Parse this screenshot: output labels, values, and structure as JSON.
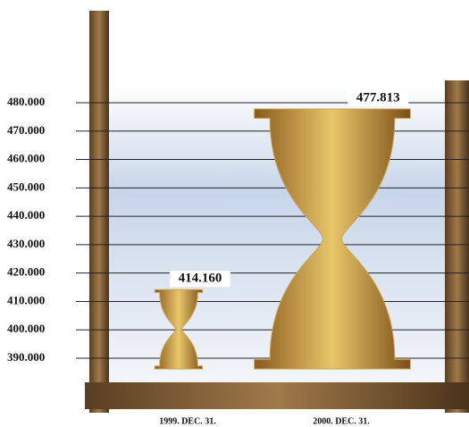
{
  "chart_data": {
    "type": "hourglass",
    "categories": [
      "1999. DEC. 31.",
      "2000. DEC. 31."
    ],
    "values": [
      414160,
      477813
    ],
    "value_labels": [
      "414.160",
      "477.813"
    ],
    "ylim": [
      390000,
      480000
    ],
    "yticks": [
      {
        "value": 390000,
        "label": "390.000"
      },
      {
        "value": 400000,
        "label": "400.000"
      },
      {
        "value": 410000,
        "label": "410.000"
      },
      {
        "value": 420000,
        "label": "420.000"
      },
      {
        "value": 430000,
        "label": "430.000"
      },
      {
        "value": 440000,
        "label": "440.000"
      },
      {
        "value": 450000,
        "label": "450.000"
      },
      {
        "value": 460000,
        "label": "460.000"
      },
      {
        "value": 470000,
        "label": "470.000"
      },
      {
        "value": 480000,
        "label": "480.000"
      }
    ],
    "grid": true,
    "color": "#c9a14a"
  }
}
